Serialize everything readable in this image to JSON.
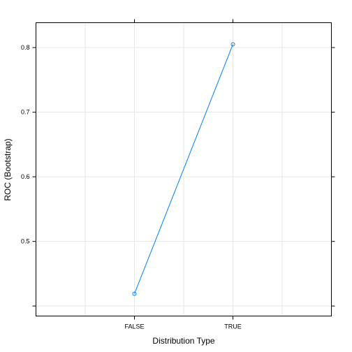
{
  "chart_data": {
    "type": "line",
    "categories": [
      "FALSE",
      "TRUE"
    ],
    "values": [
      0.419,
      0.805
    ],
    "xlabel": "Distribution Type",
    "ylabel": "ROC (Bootstrap)",
    "ylim": [
      0.3845,
      0.8385
    ],
    "yticks": [
      0.4,
      0.5,
      0.6,
      0.7,
      0.8
    ],
    "ytick_labels": [
      "",
      "0.5",
      "0.6",
      "0.7",
      "0.8"
    ],
    "grid": true,
    "marker": "open-circle",
    "line_color": "#0080ff",
    "grid_color": "#e6e6e6"
  }
}
